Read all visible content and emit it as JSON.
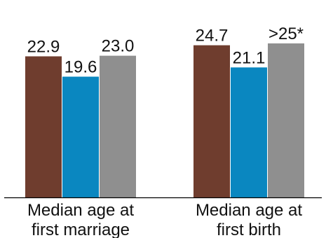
{
  "chart_data": {
    "type": "bar",
    "title": "",
    "xlabel": "",
    "ylabel": "",
    "categories": [
      {
        "line1": "Median age at",
        "line2": "first marriage"
      },
      {
        "line1": "Median age at",
        "line2": "first birth"
      }
    ],
    "series": [
      {
        "color": "#6f3d2e",
        "values": [
          22.9,
          24.7
        ],
        "labels": [
          "22.9",
          "24.7"
        ]
      },
      {
        "color": "#0a87c0",
        "values": [
          19.6,
          21.1
        ],
        "labels": [
          "19.6",
          "21.1"
        ]
      },
      {
        "color": "#8f8f8f",
        "values": [
          23.0,
          25.0
        ],
        "labels": [
          "23.0",
          ">25*"
        ]
      }
    ],
    "ylim": [
      0,
      25
    ],
    "grid": false,
    "legend": "none"
  }
}
